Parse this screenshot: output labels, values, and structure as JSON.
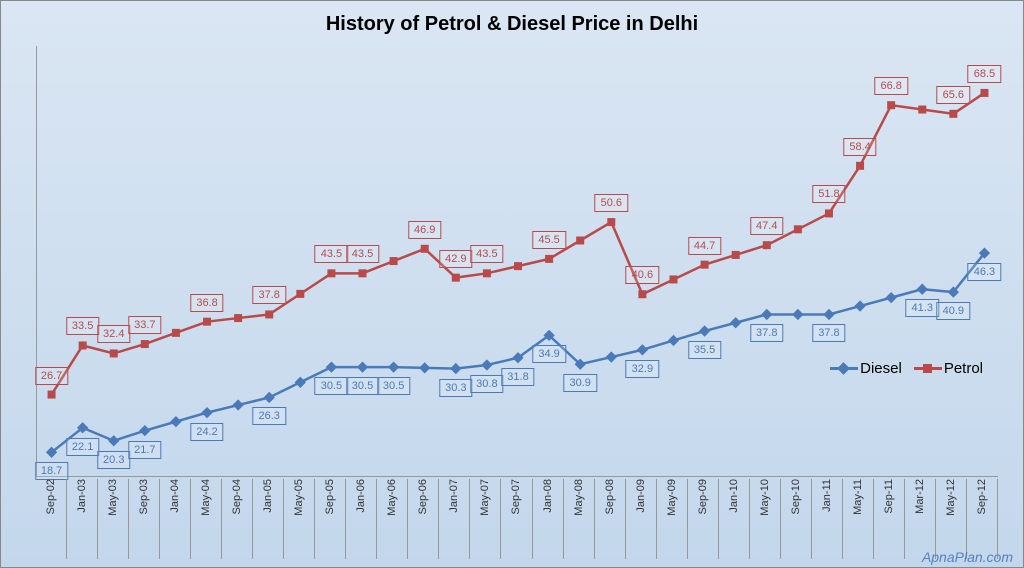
{
  "chart": {
    "type": "line",
    "title": "History of Petrol & Diesel Price in Delhi",
    "title_fontsize": 20,
    "background_gradient": [
      "#dae6f3",
      "#c3d7ec"
    ],
    "border_color": "#888888",
    "ylim": [
      15,
      75
    ],
    "label_fontsize": 11,
    "categories": [
      "Sep-02",
      "Jan-03",
      "May-03",
      "Sep-03",
      "Jan-04",
      "May-04",
      "Sep-04",
      "Jan-05",
      "May-05",
      "Sep-05",
      "Jan-06",
      "May-06",
      "Sep-06",
      "Jan-07",
      "May-07",
      "Sep-07",
      "Jan-08",
      "May-08",
      "Sep-08",
      "Jan-09",
      "May-09",
      "Sep-09",
      "Jan-10",
      "May-10",
      "Sep-10",
      "Jan-11",
      "May-11",
      "Sep-11",
      "Mar-12",
      "May-12",
      "Sep-12"
    ],
    "series": {
      "diesel": {
        "label": "Diesel",
        "color": "#4a7ab8",
        "marker": "diamond",
        "marker_size": 8,
        "line_width": 2.5,
        "label_offset": "below",
        "values": [
          18.7,
          22.1,
          20.3,
          21.7,
          24.2,
          26.3,
          30.5,
          30.5,
          30.5,
          30.3,
          30.8,
          31.8,
          34.9,
          30.9,
          32.9,
          35.5,
          37.8,
          37.8,
          41.3,
          40.9,
          46.3
        ],
        "shown_indices": [
          0,
          1,
          2,
          3,
          5,
          7,
          9,
          10,
          11,
          13,
          14,
          15,
          16,
          17,
          19,
          21,
          23,
          25,
          28,
          29,
          30
        ]
      },
      "petrol": {
        "label": "Petrol",
        "color": "#b84a4a",
        "marker": "square",
        "marker_size": 8,
        "line_width": 2.5,
        "label_offset": "above",
        "values": [
          26.7,
          33.5,
          32.4,
          33.7,
          36.8,
          37.8,
          43.5,
          43.5,
          46.9,
          42.9,
          43.5,
          45.5,
          50.6,
          40.6,
          44.7,
          47.4,
          51.8,
          58.4,
          66.8,
          65.6,
          68.5
        ],
        "shown_indices": [
          0,
          1,
          2,
          3,
          5,
          7,
          9,
          10,
          12,
          13,
          14,
          16,
          18,
          19,
          21,
          23,
          25,
          26,
          27,
          29,
          30
        ]
      }
    },
    "legend": {
      "diesel": "Diesel",
      "petrol": "Petrol"
    },
    "watermark": "ApnaPlan.com"
  }
}
